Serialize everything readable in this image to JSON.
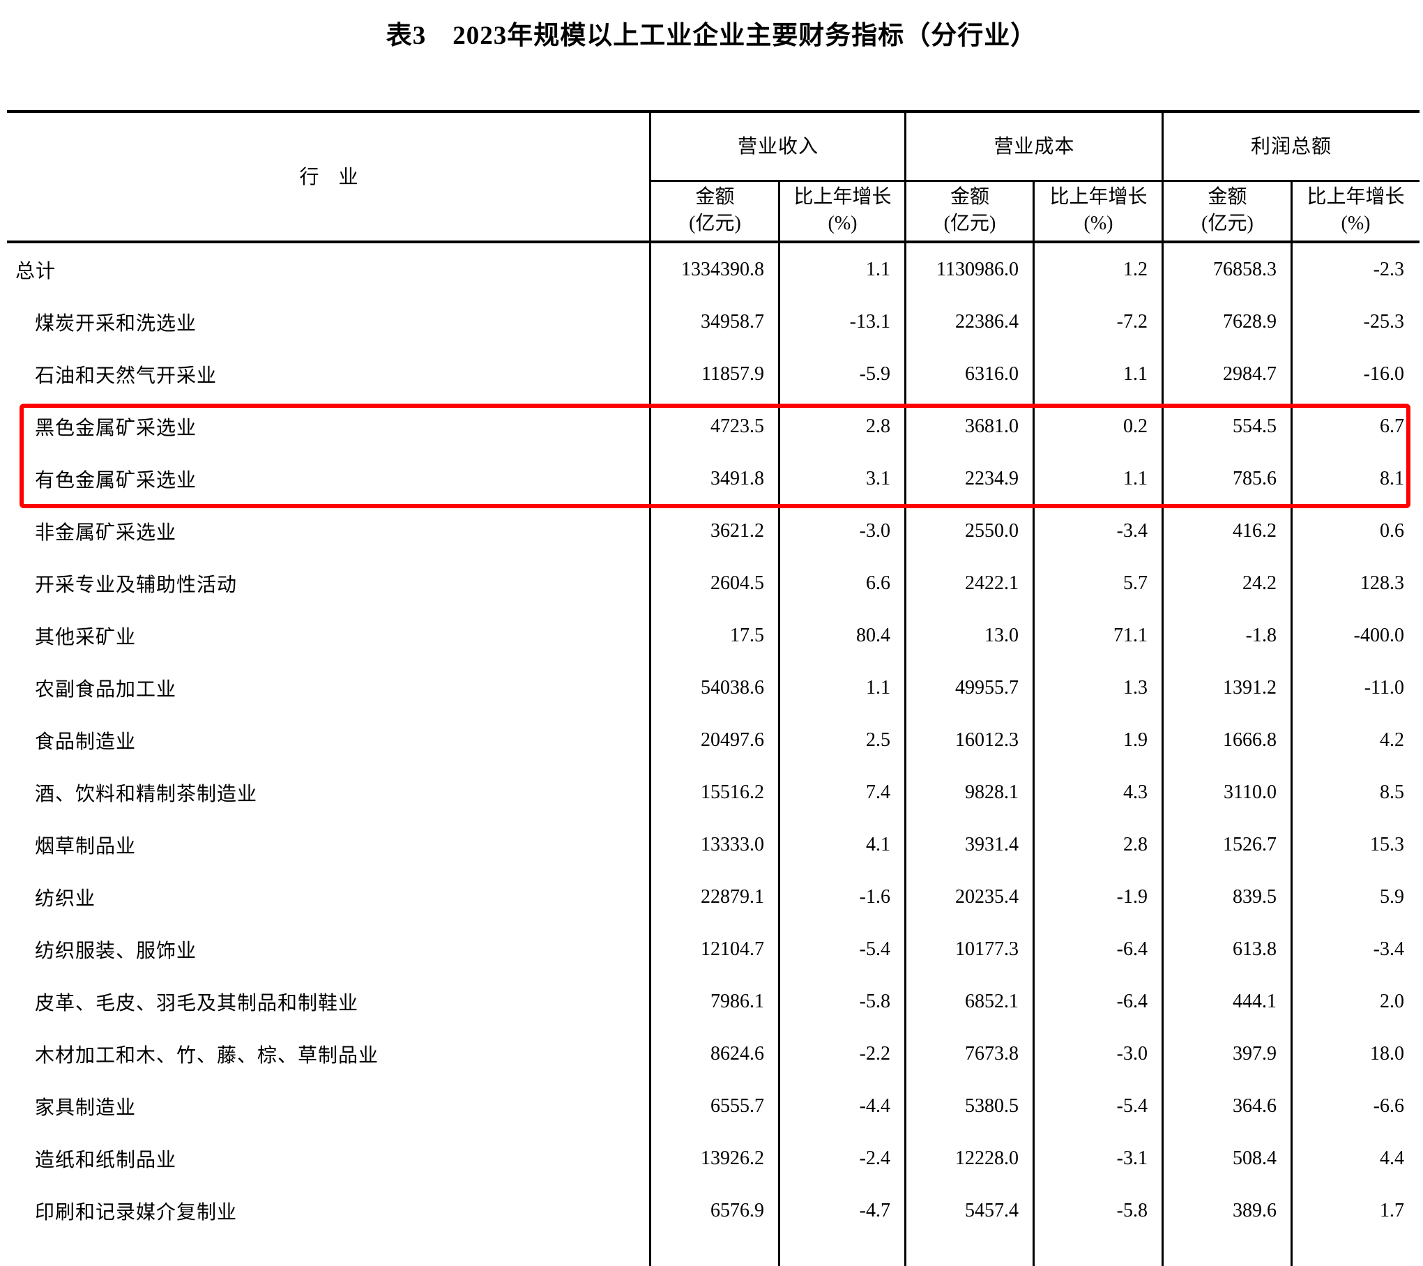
{
  "title": "表3　2023年规模以上工业企业主要财务指标（分行业）",
  "table": {
    "industry_header": "行　业",
    "groups": [
      {
        "label": "营业收入"
      },
      {
        "label": "营业成本"
      },
      {
        "label": "利润总额"
      }
    ],
    "sub_headers": {
      "amount_line1": "金额",
      "amount_line2": "(亿元)",
      "growth_line1": "比上年增长",
      "growth_line2": "(%)"
    },
    "rows": [
      {
        "name": "总计",
        "indent": false,
        "highlighted": false,
        "values": [
          "1334390.8",
          "1.1",
          "1130986.0",
          "1.2",
          "76858.3",
          "-2.3"
        ]
      },
      {
        "name": "煤炭开采和洗选业",
        "indent": true,
        "highlighted": false,
        "values": [
          "34958.7",
          "-13.1",
          "22386.4",
          "-7.2",
          "7628.9",
          "-25.3"
        ]
      },
      {
        "name": "石油和天然气开采业",
        "indent": true,
        "highlighted": false,
        "values": [
          "11857.9",
          "-5.9",
          "6316.0",
          "1.1",
          "2984.7",
          "-16.0"
        ]
      },
      {
        "name": "黑色金属矿采选业",
        "indent": true,
        "highlighted": true,
        "values": [
          "4723.5",
          "2.8",
          "3681.0",
          "0.2",
          "554.5",
          "6.7"
        ]
      },
      {
        "name": "有色金属矿采选业",
        "indent": true,
        "highlighted": true,
        "values": [
          "3491.8",
          "3.1",
          "2234.9",
          "1.1",
          "785.6",
          "8.1"
        ]
      },
      {
        "name": "非金属矿采选业",
        "indent": true,
        "highlighted": false,
        "values": [
          "3621.2",
          "-3.0",
          "2550.0",
          "-3.4",
          "416.2",
          "0.6"
        ]
      },
      {
        "name": "开采专业及辅助性活动",
        "indent": true,
        "highlighted": false,
        "values": [
          "2604.5",
          "6.6",
          "2422.1",
          "5.7",
          "24.2",
          "128.3"
        ]
      },
      {
        "name": "其他采矿业",
        "indent": true,
        "highlighted": false,
        "values": [
          "17.5",
          "80.4",
          "13.0",
          "71.1",
          "-1.8",
          "-400.0"
        ]
      },
      {
        "name": "农副食品加工业",
        "indent": true,
        "highlighted": false,
        "values": [
          "54038.6",
          "1.1",
          "49955.7",
          "1.3",
          "1391.2",
          "-11.0"
        ]
      },
      {
        "name": "食品制造业",
        "indent": true,
        "highlighted": false,
        "values": [
          "20497.6",
          "2.5",
          "16012.3",
          "1.9",
          "1666.8",
          "4.2"
        ]
      },
      {
        "name": "酒、饮料和精制茶制造业",
        "indent": true,
        "highlighted": false,
        "values": [
          "15516.2",
          "7.4",
          "9828.1",
          "4.3",
          "3110.0",
          "8.5"
        ]
      },
      {
        "name": "烟草制品业",
        "indent": true,
        "highlighted": false,
        "values": [
          "13333.0",
          "4.1",
          "3931.4",
          "2.8",
          "1526.7",
          "15.3"
        ]
      },
      {
        "name": "纺织业",
        "indent": true,
        "highlighted": false,
        "values": [
          "22879.1",
          "-1.6",
          "20235.4",
          "-1.9",
          "839.5",
          "5.9"
        ]
      },
      {
        "name": "纺织服装、服饰业",
        "indent": true,
        "highlighted": false,
        "values": [
          "12104.7",
          "-5.4",
          "10177.3",
          "-6.4",
          "613.8",
          "-3.4"
        ]
      },
      {
        "name": "皮革、毛皮、羽毛及其制品和制鞋业",
        "indent": true,
        "highlighted": false,
        "values": [
          "7986.1",
          "-5.8",
          "6852.1",
          "-6.4",
          "444.1",
          "2.0"
        ]
      },
      {
        "name": "木材加工和木、竹、藤、棕、草制品业",
        "indent": true,
        "highlighted": false,
        "values": [
          "8624.6",
          "-2.2",
          "7673.8",
          "-3.0",
          "397.9",
          "18.0"
        ]
      },
      {
        "name": "家具制造业",
        "indent": true,
        "highlighted": false,
        "values": [
          "6555.7",
          "-4.4",
          "5380.5",
          "-5.4",
          "364.6",
          "-6.6"
        ]
      },
      {
        "name": "造纸和纸制品业",
        "indent": true,
        "highlighted": false,
        "values": [
          "13926.2",
          "-2.4",
          "12228.0",
          "-3.1",
          "508.4",
          "4.4"
        ]
      },
      {
        "name": "印刷和记录媒介复制业",
        "indent": true,
        "highlighted": false,
        "values": [
          "6576.9",
          "-4.7",
          "5457.4",
          "-5.8",
          "389.6",
          "1.7"
        ]
      }
    ]
  },
  "highlight": {
    "color": "#fe0000"
  }
}
